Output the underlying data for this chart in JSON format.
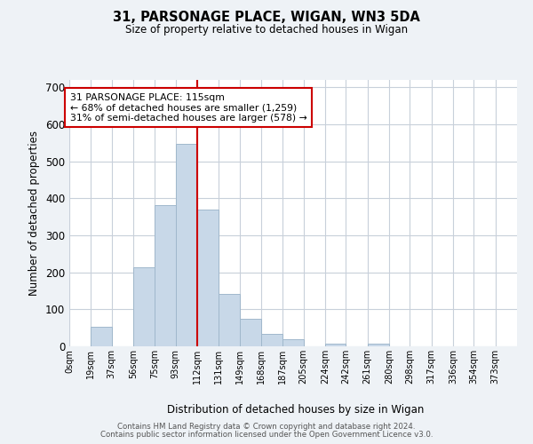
{
  "title": "31, PARSONAGE PLACE, WIGAN, WN3 5DA",
  "subtitle": "Size of property relative to detached houses in Wigan",
  "xlabel": "Distribution of detached houses by size in Wigan",
  "ylabel": "Number of detached properties",
  "bin_labels": [
    "0sqm",
    "19sqm",
    "37sqm",
    "56sqm",
    "75sqm",
    "93sqm",
    "112sqm",
    "131sqm",
    "149sqm",
    "168sqm",
    "187sqm",
    "205sqm",
    "224sqm",
    "242sqm",
    "261sqm",
    "280sqm",
    "298sqm",
    "317sqm",
    "336sqm",
    "354sqm",
    "373sqm"
  ],
  "bin_edges": [
    0,
    19,
    37,
    56,
    75,
    93,
    112,
    131,
    149,
    168,
    187,
    205,
    224,
    242,
    261,
    280,
    298,
    317,
    336,
    354,
    373,
    392
  ],
  "bar_values": [
    0,
    52,
    0,
    213,
    381,
    547,
    369,
    141,
    75,
    33,
    19,
    0,
    8,
    0,
    8,
    0,
    0,
    0,
    0,
    0,
    0
  ],
  "bar_color": "#c8d8e8",
  "bar_edgecolor": "#a0b8cc",
  "vline_x": 112,
  "vline_color": "#cc0000",
  "annotation_line1": "31 PARSONAGE PLACE: 115sqm",
  "annotation_line2": "← 68% of detached houses are smaller (1,259)",
  "annotation_line3": "31% of semi-detached houses are larger (578) →",
  "annotation_box_edgecolor": "#cc0000",
  "annotation_box_facecolor": "#ffffff",
  "ylim": [
    0,
    720
  ],
  "yticks": [
    0,
    100,
    200,
    300,
    400,
    500,
    600,
    700
  ],
  "footer1": "Contains HM Land Registry data © Crown copyright and database right 2024.",
  "footer2": "Contains public sector information licensed under the Open Government Licence v3.0.",
  "background_color": "#eef2f6",
  "plot_background_color": "#ffffff",
  "grid_color": "#c8d0da"
}
